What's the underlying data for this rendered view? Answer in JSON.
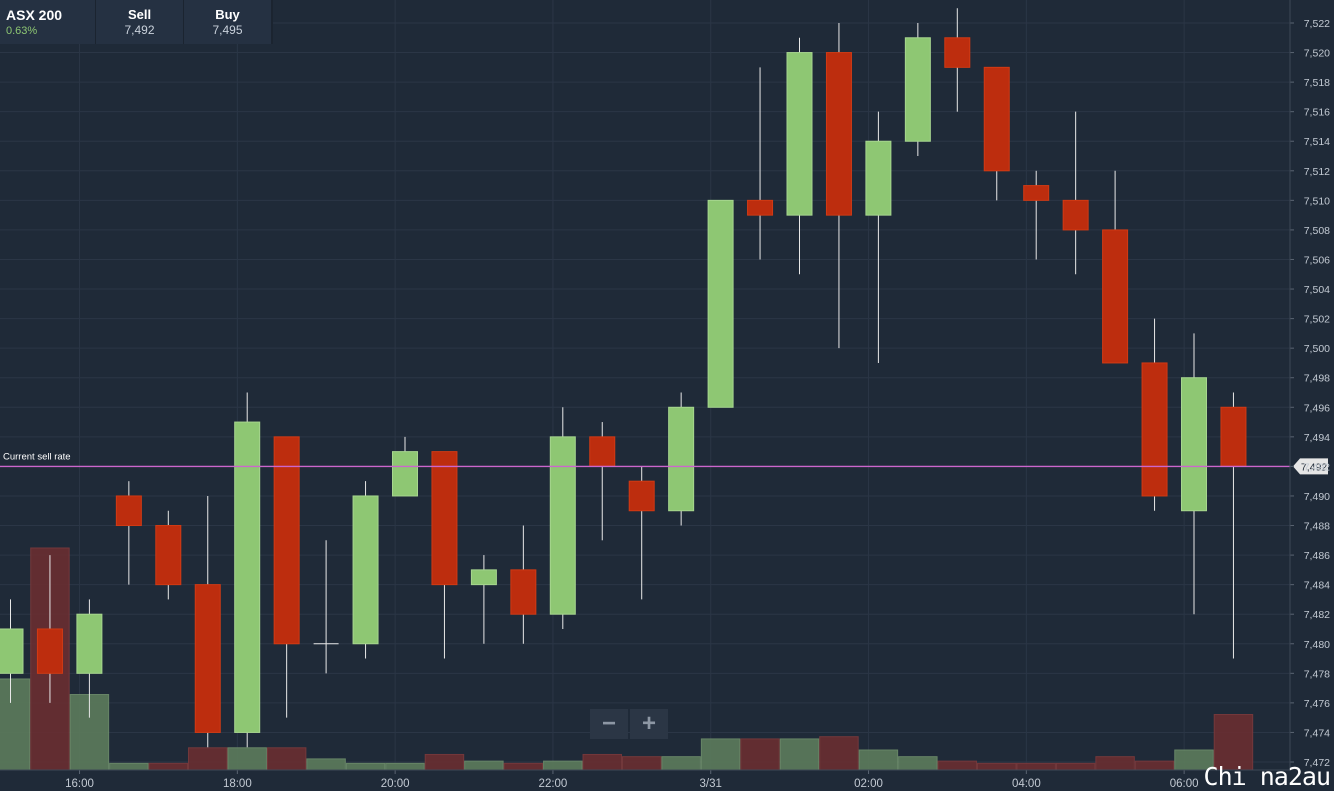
{
  "instrument": {
    "symbol": "ASX 200",
    "change": "0.63%",
    "sell_label": "Sell",
    "sell_value": "7,492",
    "buy_label": "Buy",
    "buy_value": "7,495"
  },
  "zoom": {
    "minus": "−",
    "plus": "+"
  },
  "watermark": "Chi na2au",
  "colors": {
    "background": "#1f2a38",
    "up": "#8ec773",
    "down": "#bd2d0e",
    "current_line": "#cc66cc"
  },
  "chart_data": {
    "type": "candlestick",
    "y_ticks": [
      "7,472",
      "7,474",
      "7,476",
      "7,478",
      "7,480",
      "7,482",
      "7,484",
      "7,486",
      "7,488",
      "7,490",
      "7,492",
      "7,494",
      "7,496",
      "7,498",
      "7,500",
      "7,502",
      "7,504",
      "7,506",
      "7,508",
      "7,510",
      "7,512",
      "7,514",
      "7,516",
      "7,518",
      "7,520",
      "7,522"
    ],
    "ylim": [
      7471.8,
      7523.5
    ],
    "x_ticks": [
      {
        "label": "16:00",
        "candle": 1.75
      },
      {
        "label": "18:00",
        "candle": 5.75
      },
      {
        "label": "20:00",
        "candle": 9.75
      },
      {
        "label": "22:00",
        "candle": 13.75
      },
      {
        "label": "3/31",
        "candle": 17.75
      },
      {
        "label": "02:00",
        "candle": 21.75
      },
      {
        "label": "04:00",
        "candle": 25.75
      },
      {
        "label": "06:00",
        "candle": 29.75
      }
    ],
    "current_sell_rate": {
      "label": "Current sell rate",
      "value": 7492,
      "value_label": "7,492"
    },
    "candles": [
      {
        "o": 7478,
        "h": 7483,
        "l": 7476,
        "c": 7481
      },
      {
        "o": 7481,
        "h": 7486,
        "l": 7476,
        "c": 7478
      },
      {
        "o": 7478,
        "h": 7483,
        "l": 7475,
        "c": 7482
      },
      {
        "o": 7490,
        "h": 7491,
        "l": 7484,
        "c": 7488
      },
      {
        "o": 7488,
        "h": 7489,
        "l": 7483,
        "c": 7484
      },
      {
        "o": 7484,
        "h": 7490,
        "l": 7473,
        "c": 7474
      },
      {
        "o": 7474,
        "h": 7497,
        "l": 7473,
        "c": 7495
      },
      {
        "o": 7494,
        "h": 7494,
        "l": 7475,
        "c": 7480
      },
      {
        "o": 7480,
        "h": 7487,
        "l": 7478,
        "c": 7480
      },
      {
        "o": 7480,
        "h": 7491,
        "l": 7479,
        "c": 7490
      },
      {
        "o": 7490,
        "h": 7494,
        "l": 7490,
        "c": 7493
      },
      {
        "o": 7493,
        "h": 7493,
        "l": 7479,
        "c": 7484
      },
      {
        "o": 7484,
        "h": 7486,
        "l": 7480,
        "c": 7485
      },
      {
        "o": 7485,
        "h": 7488,
        "l": 7480,
        "c": 7482
      },
      {
        "o": 7482,
        "h": 7496,
        "l": 7481,
        "c": 7494
      },
      {
        "o": 7494,
        "h": 7495,
        "l": 7487,
        "c": 7492
      },
      {
        "o": 7491,
        "h": 7492,
        "l": 7483,
        "c": 7489
      },
      {
        "o": 7489,
        "h": 7497,
        "l": 7488,
        "c": 7496
      },
      {
        "o": 7496,
        "h": 7510,
        "l": 7496,
        "c": 7510
      },
      {
        "o": 7510,
        "h": 7519,
        "l": 7506,
        "c": 7509
      },
      {
        "o": 7509,
        "h": 7521,
        "l": 7505,
        "c": 7520
      },
      {
        "o": 7520,
        "h": 7522,
        "l": 7500,
        "c": 7509
      },
      {
        "o": 7509,
        "h": 7516,
        "l": 7499,
        "c": 7514
      },
      {
        "o": 7514,
        "h": 7522,
        "l": 7513,
        "c": 7521
      },
      {
        "o": 7521,
        "h": 7523,
        "l": 7516,
        "c": 7519
      },
      {
        "o": 7519,
        "h": 7519,
        "l": 7510,
        "c": 7512
      },
      {
        "o": 7511,
        "h": 7512,
        "l": 7506,
        "c": 7510
      },
      {
        "o": 7510,
        "h": 7516,
        "l": 7505,
        "c": 7508
      },
      {
        "o": 7508,
        "h": 7512,
        "l": 7499,
        "c": 7499
      },
      {
        "o": 7499,
        "h": 7502,
        "l": 7489,
        "c": 7490
      },
      {
        "o": 7489,
        "h": 7501,
        "l": 7482,
        "c": 7498
      },
      {
        "o": 7496,
        "h": 7497,
        "l": 7479,
        "c": 7492
      }
    ],
    "volume": [
      {
        "v": 0.41,
        "up": true
      },
      {
        "v": 1.0,
        "up": false
      },
      {
        "v": 0.34,
        "up": true
      },
      {
        "v": 0.03,
        "up": true
      },
      {
        "v": 0.03,
        "up": false
      },
      {
        "v": 0.1,
        "up": false
      },
      {
        "v": 0.1,
        "up": true
      },
      {
        "v": 0.1,
        "up": false
      },
      {
        "v": 0.05,
        "up": true
      },
      {
        "v": 0.03,
        "up": true
      },
      {
        "v": 0.03,
        "up": true
      },
      {
        "v": 0.07,
        "up": false
      },
      {
        "v": 0.04,
        "up": true
      },
      {
        "v": 0.03,
        "up": false
      },
      {
        "v": 0.04,
        "up": true
      },
      {
        "v": 0.07,
        "up": false
      },
      {
        "v": 0.06,
        "up": false
      },
      {
        "v": 0.06,
        "up": true
      },
      {
        "v": 0.14,
        "up": true
      },
      {
        "v": 0.14,
        "up": false
      },
      {
        "v": 0.14,
        "up": true
      },
      {
        "v": 0.15,
        "up": false
      },
      {
        "v": 0.09,
        "up": true
      },
      {
        "v": 0.06,
        "up": true
      },
      {
        "v": 0.04,
        "up": false
      },
      {
        "v": 0.03,
        "up": false
      },
      {
        "v": 0.03,
        "up": false
      },
      {
        "v": 0.03,
        "up": false
      },
      {
        "v": 0.06,
        "up": false
      },
      {
        "v": 0.04,
        "up": false
      },
      {
        "v": 0.09,
        "up": true
      },
      {
        "v": 0.25,
        "up": false
      }
    ]
  }
}
